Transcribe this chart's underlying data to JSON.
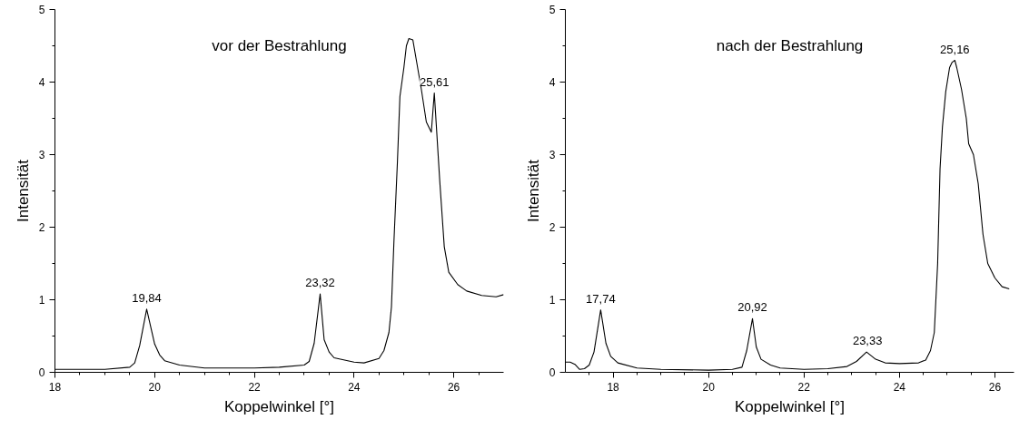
{
  "chart_data": [
    {
      "type": "line",
      "title": "vor der Bestrahlung",
      "xlabel": "Koppelwinkel [°]",
      "ylabel": "Intensität",
      "grid": false,
      "marker": "none",
      "line_style": "solid",
      "xlim": [
        18,
        27
      ],
      "ylim": [
        0,
        5
      ],
      "xticks": [
        18,
        {
          "value": 18.5,
          "label": null
        },
        {
          "value": 19,
          "label": null
        },
        {
          "value": 19.5,
          "label": null
        },
        20,
        {
          "value": 20.5,
          "label": null
        },
        {
          "value": 21,
          "label": null
        },
        {
          "value": 21.5,
          "label": null
        },
        22,
        {
          "value": 22.5,
          "label": null
        },
        {
          "value": 23,
          "label": null
        },
        {
          "value": 23.5,
          "label": null
        },
        24,
        {
          "value": 24.5,
          "label": null
        },
        {
          "value": 25,
          "label": null
        },
        {
          "value": 25.5,
          "label": null
        },
        26,
        {
          "value": 26.5,
          "label": null
        }
      ],
      "yticks": [
        0,
        {
          "value": 0.5,
          "label": null
        },
        1,
        {
          "value": 1.5,
          "label": null
        },
        2,
        {
          "value": 2.5,
          "label": null
        },
        3,
        {
          "value": 3.5,
          "label": null
        },
        4,
        {
          "value": 4.5,
          "label": null
        },
        5
      ],
      "series": [
        {
          "color": "#000000",
          "x": [
            18,
            19,
            19.5,
            19.6,
            19.7,
            19.84,
            20.0,
            20.1,
            20.2,
            20.5,
            21,
            22,
            22.5,
            23,
            23.1,
            23.2,
            23.32,
            23.4,
            23.5,
            23.6,
            24,
            24.2,
            24.5,
            24.6,
            24.7,
            24.75,
            24.8,
            24.87,
            24.92,
            25.0,
            25.05,
            25.1,
            25.18,
            25.25,
            25.35,
            25.45,
            25.55,
            25.61,
            25.72,
            25.81,
            25.9,
            26.08,
            26.26,
            26.56,
            26.85,
            27
          ],
          "values": [
            0.04,
            0.04,
            0.07,
            0.13,
            0.37,
            0.87,
            0.39,
            0.24,
            0.16,
            0.1,
            0.06,
            0.06,
            0.07,
            0.1,
            0.15,
            0.4,
            1.08,
            0.45,
            0.28,
            0.2,
            0.14,
            0.13,
            0.19,
            0.3,
            0.55,
            0.9,
            1.8,
            2.9,
            3.8,
            4.2,
            4.5,
            4.6,
            4.58,
            4.3,
            3.9,
            3.45,
            3.31,
            3.85,
            2.63,
            1.73,
            1.38,
            1.21,
            1.12,
            1.06,
            1.04,
            1.07
          ]
        }
      ],
      "annotations": [
        {
          "text": "19,84",
          "x": 19.84,
          "y": 0.87
        },
        {
          "text": "23,32",
          "x": 23.32,
          "y": 1.08
        },
        {
          "text": "25,61",
          "x": 25.61,
          "y": 3.85
        }
      ]
    },
    {
      "type": "line",
      "title": "nach der Bestrahlung",
      "xlabel": "Koppelwinkel [°]",
      "ylabel": "Intensität",
      "grid": false,
      "marker": "none",
      "line_style": "solid",
      "xlim": [
        17,
        26.4
      ],
      "ylim": [
        0,
        5
      ],
      "xticks": [
        {
          "value": 17.5,
          "label": null
        },
        18,
        {
          "value": 18.5,
          "label": null
        },
        {
          "value": 19,
          "label": null
        },
        {
          "value": 19.5,
          "label": null
        },
        20,
        {
          "value": 20.5,
          "label": null
        },
        {
          "value": 21,
          "label": null
        },
        {
          "value": 21.5,
          "label": null
        },
        22,
        {
          "value": 22.5,
          "label": null
        },
        {
          "value": 23,
          "label": null
        },
        {
          "value": 23.5,
          "label": null
        },
        24,
        {
          "value": 24.5,
          "label": null
        },
        {
          "value": 25,
          "label": null
        },
        {
          "value": 25.5,
          "label": null
        },
        26
      ],
      "yticks": [
        0,
        {
          "value": 0.5,
          "label": null
        },
        1,
        {
          "value": 1.5,
          "label": null
        },
        2,
        {
          "value": 2.5,
          "label": null
        },
        3,
        {
          "value": 3.5,
          "label": null
        },
        4,
        {
          "value": 4.5,
          "label": null
        },
        5
      ],
      "series": [
        {
          "color": "#000000",
          "x": [
            17.0,
            17.1,
            17.2,
            17.3,
            17.4,
            17.5,
            17.6,
            17.74,
            17.85,
            17.95,
            18.1,
            18.5,
            19,
            20,
            20.5,
            20.7,
            20.8,
            20.92,
            21.0,
            21.1,
            21.3,
            21.5,
            22,
            22.5,
            22.9,
            23.1,
            23.31,
            23.5,
            23.7,
            24,
            24.4,
            24.55,
            24.65,
            24.73,
            24.8,
            24.85,
            24.9,
            24.97,
            25.05,
            25.1,
            25.16,
            25.2,
            25.3,
            25.4,
            25.45,
            25.55,
            25.65,
            25.75,
            25.85,
            26.0,
            26.15,
            26.3
          ],
          "values": [
            0.14,
            0.14,
            0.11,
            0.04,
            0.05,
            0.1,
            0.28,
            0.86,
            0.4,
            0.22,
            0.13,
            0.06,
            0.04,
            0.03,
            0.04,
            0.07,
            0.3,
            0.74,
            0.35,
            0.18,
            0.1,
            0.06,
            0.04,
            0.05,
            0.08,
            0.15,
            0.28,
            0.18,
            0.13,
            0.12,
            0.13,
            0.17,
            0.3,
            0.55,
            1.5,
            2.8,
            3.38,
            3.87,
            4.2,
            4.27,
            4.3,
            4.2,
            3.9,
            3.5,
            3.15,
            3.0,
            2.6,
            1.9,
            1.5,
            1.3,
            1.18,
            1.15
          ]
        }
      ],
      "annotations": [
        {
          "text": "17,74",
          "x": 17.74,
          "y": 0.86
        },
        {
          "text": "20,92",
          "x": 20.92,
          "y": 0.74
        },
        {
          "text": "23,33",
          "x": 23.33,
          "y": 0.28
        },
        {
          "text": "25,16",
          "x": 25.16,
          "y": 4.3
        }
      ]
    }
  ]
}
